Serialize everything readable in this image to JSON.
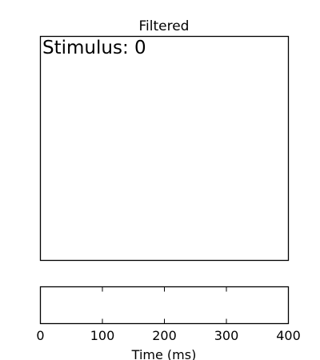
{
  "chart_data": [
    {
      "type": "line",
      "title": "Filtered",
      "annotation": "Stimulus: 0",
      "xlabel": "",
      "ylabel": "",
      "series": [],
      "show_ticks": false,
      "grid": false
    },
    {
      "type": "line",
      "title": "",
      "xlabel": "Time (ms)",
      "ylabel": "",
      "xlim": [
        0,
        400
      ],
      "x_ticks": [
        0,
        100,
        200,
        300,
        400
      ],
      "x_tick_labels": [
        "0",
        "100",
        "200",
        "300",
        "400"
      ],
      "series": [],
      "grid": false
    }
  ]
}
